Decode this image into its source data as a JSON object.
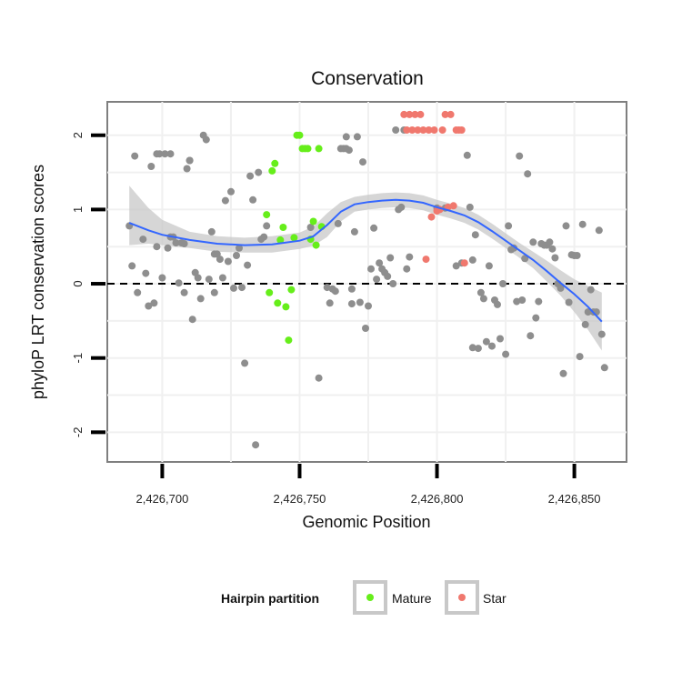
{
  "chart_data": {
    "type": "scatter",
    "title": "Conservation",
    "xlabel": "Genomic Position",
    "ylabel": "phyloP LRT conservation scores",
    "xlim": [
      2426680,
      2426869
    ],
    "ylim": [
      -2.4,
      2.45
    ],
    "x_ticks": [
      2426700,
      2426750,
      2426800,
      2426850
    ],
    "x_tick_labels": [
      "2,426,700",
      "2,426,750",
      "2,426,800",
      "2,426,850"
    ],
    "y_ticks": [
      -2,
      -1,
      0,
      1,
      2
    ],
    "y_tick_labels": [
      "-2",
      "-1",
      "0",
      "1",
      "2"
    ],
    "reference_line": {
      "y": 0,
      "style": "dashed"
    },
    "grid": true,
    "legend": {
      "title": "Hairpin partition",
      "position": "bottom",
      "entries": [
        {
          "label": "Mature",
          "color": "#66ee1a"
        },
        {
          "label": "Star",
          "color": "#f0786e"
        }
      ]
    },
    "colors": {
      "other": "#8e8e8e",
      "smooth": "#3366ff",
      "band": "#c8c8c8"
    },
    "series": [
      {
        "group": "other",
        "x": [
          2426688,
          2426689,
          2426690,
          2426691,
          2426693,
          2426694,
          2426695,
          2426696,
          2426697,
          2426698,
          2426698,
          2426699,
          2426700,
          2426701,
          2426702,
          2426703,
          2426703,
          2426704,
          2426705,
          2426706,
          2426707,
          2426708,
          2426708,
          2426709,
          2426710,
          2426710,
          2426711,
          2426712,
          2426713,
          2426714,
          2426715,
          2426716,
          2426717,
          2426718,
          2426719,
          2426719,
          2426720,
          2426721,
          2426722,
          2426723,
          2426724,
          2426725,
          2426726,
          2426727,
          2426728,
          2426729,
          2426730,
          2426731,
          2426732,
          2426733,
          2426734,
          2426735,
          2426736,
          2426737,
          2426738,
          2426754,
          2426757,
          2426760,
          2426761,
          2426762,
          2426763,
          2426764,
          2426765,
          2426766,
          2426767,
          2426767,
          2426768,
          2426769,
          2426769,
          2426770,
          2426771,
          2426772,
          2426773,
          2426774,
          2426775,
          2426776,
          2426777,
          2426778,
          2426779,
          2426780,
          2426781,
          2426782,
          2426783,
          2426784,
          2426785,
          2426786,
          2426787,
          2426788,
          2426789,
          2426790,
          2426800,
          2426803,
          2426807,
          2426809,
          2426811,
          2426812,
          2426813,
          2426813,
          2426814,
          2426815,
          2426816,
          2426817,
          2426818,
          2426819,
          2426820,
          2426821,
          2426822,
          2426823,
          2426824,
          2426825,
          2426826,
          2426827,
          2426828,
          2426829,
          2426830,
          2426831,
          2426832,
          2426833,
          2426834,
          2426835,
          2426836,
          2426837,
          2426838,
          2426839,
          2426840,
          2426841,
          2426842,
          2426843,
          2426844,
          2426845,
          2426846,
          2426847,
          2426848,
          2426849,
          2426850,
          2426851,
          2426852,
          2426853,
          2426854,
          2426855,
          2426856,
          2426857,
          2426858,
          2426859,
          2426860,
          2426861
        ],
        "y": [
          0.78,
          0.24,
          1.72,
          -0.12,
          0.6,
          0.14,
          -0.3,
          1.58,
          -0.26,
          0.5,
          1.75,
          1.75,
          0.08,
          1.75,
          0.48,
          0.63,
          1.75,
          0.63,
          0.55,
          0.01,
          0.55,
          -0.12,
          0.54,
          1.55,
          1.66,
          1.66,
          -0.48,
          0.15,
          0.08,
          -0.2,
          2.0,
          1.94,
          0.06,
          0.7,
          -0.12,
          0.4,
          0.4,
          0.33,
          0.08,
          1.12,
          0.3,
          1.24,
          -0.06,
          0.38,
          0.48,
          -0.05,
          -1.07,
          0.25,
          1.45,
          1.13,
          -2.17,
          1.5,
          0.6,
          0.63,
          0.78,
          0.76,
          -1.27,
          -0.05,
          -0.26,
          -0.07,
          -0.1,
          0.81,
          1.82,
          1.82,
          1.82,
          1.98,
          1.8,
          -0.27,
          -0.07,
          0.7,
          1.98,
          -0.25,
          1.64,
          -0.6,
          -0.3,
          0.2,
          0.75,
          0.06,
          0.28,
          0.2,
          0.15,
          0.1,
          0.35,
          0.0,
          2.07,
          1.0,
          1.03,
          2.07,
          0.2,
          0.36,
          1.02,
          1.02,
          0.24,
          0.28,
          1.73,
          1.03,
          0.32,
          -0.86,
          0.66,
          -0.87,
          -0.12,
          -0.2,
          -0.78,
          0.24,
          -0.84,
          -0.22,
          -0.28,
          -0.74,
          0.0,
          -0.95,
          0.78,
          0.46,
          0.48,
          -0.24,
          1.72,
          -0.22,
          0.34,
          1.48,
          -0.7,
          0.56,
          -0.46,
          -0.24,
          0.54,
          0.52,
          0.52,
          0.56,
          0.47,
          0.35,
          0.0,
          -0.06,
          -1.21,
          0.78,
          -0.25,
          0.39,
          0.38,
          0.38,
          -0.98,
          0.8,
          -0.55,
          -0.38,
          -0.08,
          -0.38,
          -0.38,
          0.72,
          -0.68,
          -1.13
        ]
      },
      {
        "group": "Mature",
        "x": [
          2426738,
          2426739,
          2426740,
          2426741,
          2426742,
          2426743,
          2426744,
          2426745,
          2426746,
          2426747,
          2426748,
          2426749,
          2426750,
          2426751,
          2426752,
          2426753,
          2426754,
          2426755,
          2426756,
          2426757,
          2426758
        ],
        "y": [
          0.93,
          -0.12,
          1.52,
          1.62,
          -0.26,
          0.59,
          0.76,
          -0.31,
          -0.76,
          -0.08,
          0.62,
          2.0,
          2.0,
          1.82,
          1.82,
          1.82,
          0.6,
          0.84,
          0.52,
          1.82,
          0.77
        ]
      },
      {
        "group": "Star",
        "x": [
          2426788,
          2426789,
          2426790,
          2426791,
          2426792,
          2426793,
          2426794,
          2426795,
          2426796,
          2426797,
          2426798,
          2426799,
          2426800,
          2426801,
          2426802,
          2426803,
          2426804,
          2426805,
          2426806,
          2426807,
          2426808,
          2426809,
          2426810
        ],
        "y": [
          2.28,
          2.07,
          2.28,
          2.07,
          2.28,
          2.07,
          2.28,
          2.07,
          0.33,
          2.07,
          0.9,
          2.07,
          0.98,
          1.0,
          2.07,
          2.28,
          1.03,
          2.28,
          1.05,
          2.07,
          2.07,
          2.07,
          0.28
        ]
      }
    ],
    "smooth": {
      "x": [
        2426688,
        2426695,
        2426700,
        2426710,
        2426720,
        2426730,
        2426740,
        2426750,
        2426755,
        2426760,
        2426765,
        2426770,
        2426775,
        2426780,
        2426785,
        2426790,
        2426795,
        2426800,
        2426805,
        2426810,
        2426815,
        2426820,
        2426825,
        2426830,
        2426835,
        2426840,
        2426845,
        2426850,
        2426855,
        2426860
      ],
      "y": [
        0.82,
        0.72,
        0.66,
        0.59,
        0.54,
        0.52,
        0.53,
        0.58,
        0.64,
        0.79,
        0.97,
        1.07,
        1.1,
        1.12,
        1.13,
        1.12,
        1.09,
        1.03,
        0.98,
        0.92,
        0.83,
        0.71,
        0.58,
        0.45,
        0.32,
        0.17,
        0.01,
        -0.14,
        -0.31,
        -0.51
      ],
      "lower": [
        0.52,
        0.54,
        0.52,
        0.48,
        0.43,
        0.42,
        0.42,
        0.47,
        0.51,
        0.63,
        0.84,
        0.97,
        1.0,
        1.02,
        1.03,
        1.02,
        0.99,
        0.93,
        0.88,
        0.82,
        0.73,
        0.61,
        0.48,
        0.35,
        0.21,
        0.03,
        -0.16,
        -0.38,
        -0.62,
        -0.9
      ],
      "upper": [
        1.32,
        1.02,
        0.86,
        0.7,
        0.64,
        0.62,
        0.64,
        0.69,
        0.77,
        0.95,
        1.1,
        1.17,
        1.2,
        1.22,
        1.23,
        1.22,
        1.19,
        1.13,
        1.08,
        1.02,
        0.93,
        0.81,
        0.68,
        0.55,
        0.43,
        0.31,
        0.18,
        0.06,
        -0.03,
        -0.12
      ]
    }
  }
}
